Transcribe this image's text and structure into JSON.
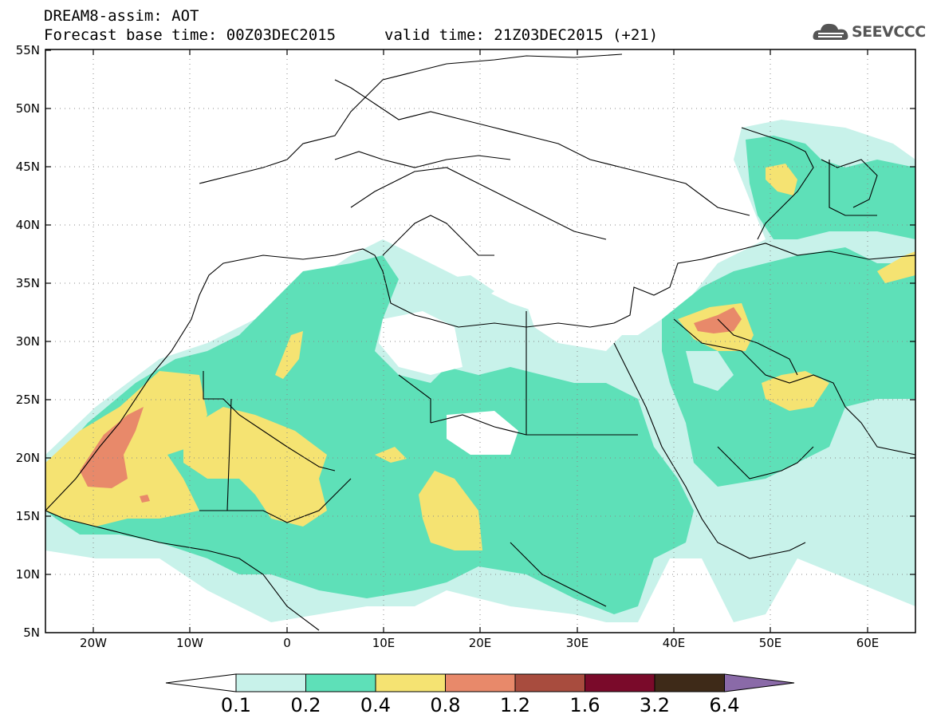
{
  "header": {
    "title": "DREAM8-assim: AOT",
    "base_time": "Forecast base time: 00Z03DEC2015",
    "valid_time": "valid time: 21Z03DEC2015 (+21)"
  },
  "logo": {
    "text": "SEEVCCC",
    "icon": "cloud-icon"
  },
  "axes": {
    "lat_labels": [
      "55N",
      "50N",
      "45N",
      "40N",
      "35N",
      "30N",
      "25N",
      "20N",
      "15N",
      "10N",
      "5N"
    ],
    "lon_labels": [
      "20W",
      "10W",
      "0",
      "10E",
      "20E",
      "30E",
      "40E",
      "50E",
      "60E"
    ],
    "lat_range": [
      5,
      55
    ],
    "lon_range": [
      -25,
      65
    ],
    "grid": true
  },
  "colorbar": {
    "labels": [
      "0.1",
      "0.2",
      "0.4",
      "0.8",
      "1.2",
      "1.6",
      "3.2",
      "6.4"
    ],
    "colors": [
      "#ffffff",
      "#c8f2ea",
      "#5ee0b8",
      "#f5e372",
      "#e8896a",
      "#a84c3e",
      "#7a0a2a",
      "#3e2a18",
      "#8a6aa8"
    ]
  }
}
